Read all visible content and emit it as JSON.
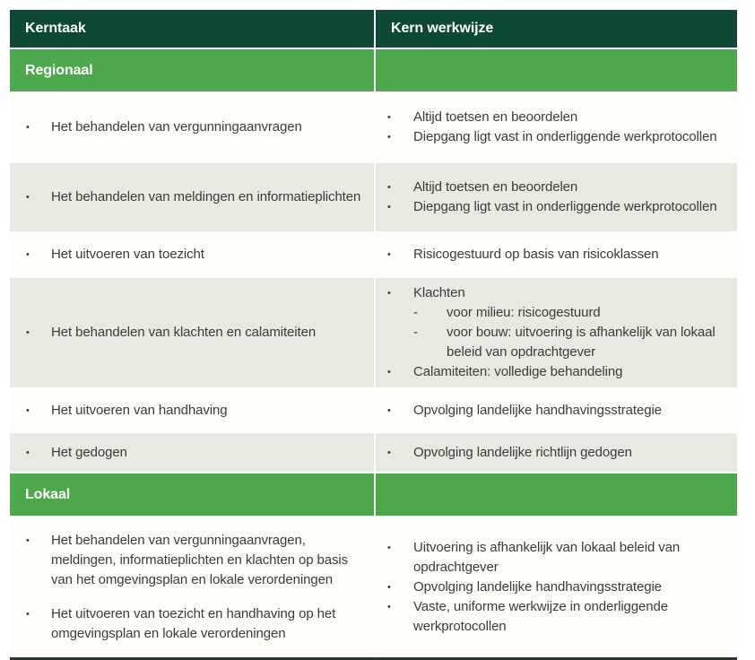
{
  "header": {
    "col1": "Kerntaak",
    "col2": "Kern werkwijze"
  },
  "sections": {
    "regionaal": {
      "label": "Regionaal"
    },
    "lokaal": {
      "label": "Lokaal"
    }
  },
  "rows": {
    "row1": {
      "task": "Het behandelen van vergunningaanvragen",
      "methods": {
        "m1": "Altijd toetsen en beoordelen",
        "m2": "Diepgang ligt vast in onderliggende werkprotocollen"
      }
    },
    "row2": {
      "task": "Het behandelen van meldingen en informatieplichten",
      "methods": {
        "m1": "Altijd toetsen en beoordelen",
        "m2": "Diepgang ligt vast in onderliggende werkprotocollen"
      }
    },
    "row3": {
      "task": "Het uitvoeren van toezicht",
      "methods": {
        "m1": "Risicogestuurd op basis van risicoklassen"
      }
    },
    "row4": {
      "task": "Het behandelen van klachten en calamiteiten",
      "methods": {
        "m1": "Klachten",
        "m1_sub1": "voor milieu: risicogestuurd",
        "m1_sub2": "voor bouw: uitvoering is afhankelijk van lokaal beleid van opdrachtgever",
        "m2": "Calamiteiten: volledige behandeling"
      }
    },
    "row5": {
      "task": "Het uitvoeren van handhaving",
      "methods": {
        "m1": "Opvolging landelijke handhavingsstrategie"
      }
    },
    "row6": {
      "task": "Het gedogen",
      "methods": {
        "m1": "Opvolging landelijke richtlijn gedogen"
      }
    },
    "row7": {
      "tasks": {
        "t1": "Het behandelen van vergunningaanvragen, meldingen, informatieplichten en klachten op basis van het omgevingsplan en lokale veror­deningen",
        "t2": "Het uitvoeren van toezicht en handhaving op het omgevingsplan en lokale verordeningen"
      },
      "methods": {
        "m1": "Uitvoering is afhankelijk van lokaal beleid van opdrachtgever",
        "m2": "Opvolging landelijke handhavingsstrategie",
        "m3": "Vaste, uniforme werkwijze in onderliggende werkprotocollen"
      }
    }
  },
  "colors": {
    "header-bg": "#0e4a33",
    "section-bg": "#4da74d",
    "row-alt-bg": "#e9e8e1",
    "row-bg": "#fefdf8",
    "text": "#3c3c37",
    "header-text": "#ffffff",
    "bottom-line": "#1d3a33"
  }
}
